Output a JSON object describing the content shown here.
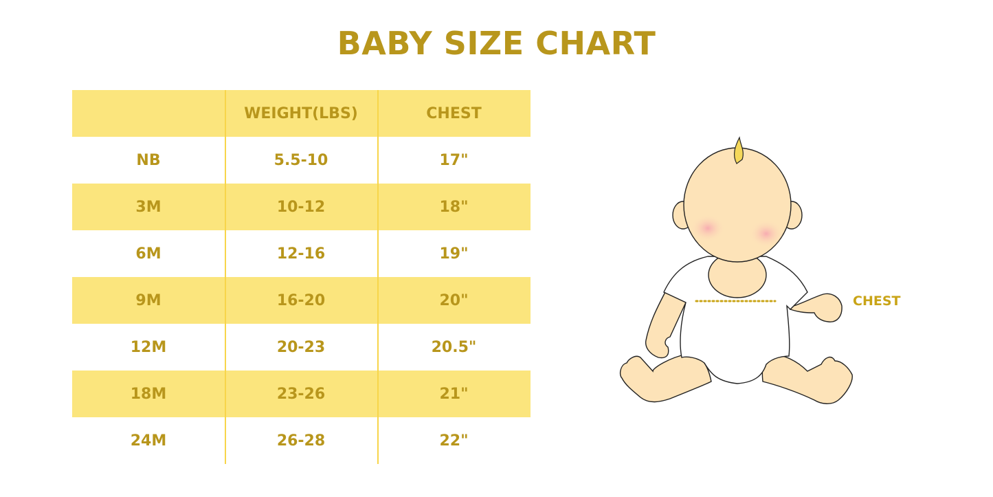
{
  "title": "BABY SIZE CHART",
  "table": {
    "headers": [
      "",
      "WEIGHT(LBS)",
      "CHEST"
    ],
    "rows": [
      [
        "NB",
        "5.5-10",
        "17\""
      ],
      [
        "3M",
        "10-12",
        "18\""
      ],
      [
        "6M",
        "12-16",
        "19\""
      ],
      [
        "9M",
        "16-20",
        "20\""
      ],
      [
        "12M",
        "20-23",
        "20.5\""
      ],
      [
        "18M",
        "23-26",
        "21\""
      ],
      [
        "24M",
        "26-28",
        "22\""
      ]
    ]
  },
  "illustration": {
    "chest_label": "CHEST"
  },
  "colors": {
    "text": "#B8961C",
    "band": "#FBE57D",
    "skin": "#FDE3B8"
  }
}
